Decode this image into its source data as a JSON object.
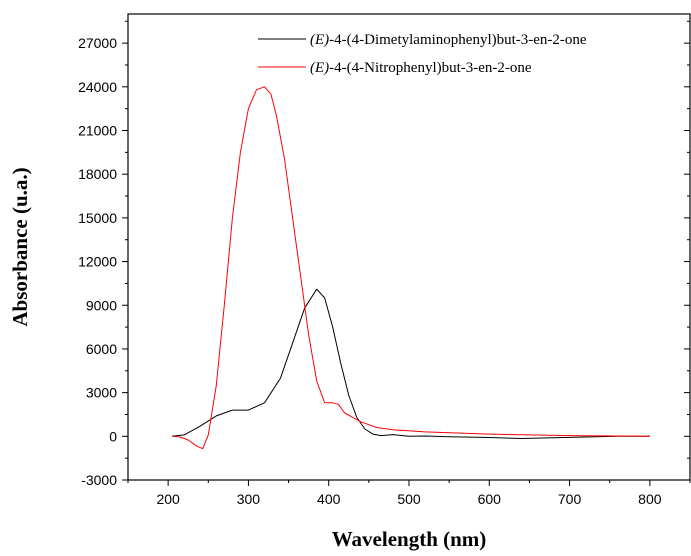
{
  "chart_data": {
    "type": "line",
    "title": "",
    "xlabel": "Wavelength (nm)",
    "ylabel": "Absorbance (u.a.)",
    "xlim": [
      150,
      850
    ],
    "ylim": [
      -3000,
      29000
    ],
    "x_ticks": [
      "200",
      "300",
      "400",
      "500",
      "600",
      "700",
      "800"
    ],
    "y_ticks": [
      "-3000",
      "0",
      "3000",
      "6000",
      "9000",
      "12000",
      "15000",
      "18000",
      "21000",
      "24000",
      "27000"
    ],
    "grid": false,
    "legend_position": "top-right",
    "series": [
      {
        "name_prefix": "(E)",
        "name_suffix": "-4-(4-Dimetylaminophenyl)but-3-en-2-one",
        "color": "#000000",
        "x": [
          205,
          220,
          240,
          260,
          280,
          300,
          320,
          340,
          355,
          370,
          385,
          395,
          405,
          415,
          425,
          435,
          445,
          455,
          465,
          480,
          500,
          520,
          550,
          600,
          640,
          680,
          720,
          760,
          800
        ],
        "y": [
          0,
          100,
          700,
          1400,
          1800,
          1800,
          2300,
          4000,
          6400,
          8800,
          10100,
          9500,
          7500,
          5000,
          2800,
          1300,
          500,
          150,
          50,
          120,
          0,
          20,
          -30,
          -80,
          -150,
          -100,
          -50,
          0,
          0
        ]
      },
      {
        "name_prefix": "(E)",
        "name_suffix": "-4-(4-Nitrophenyl)but-3-en-2-one",
        "color": "#ff0000",
        "x": [
          205,
          215,
          225,
          235,
          243,
          250,
          260,
          270,
          280,
          290,
          300,
          310,
          320,
          328,
          335,
          345,
          355,
          365,
          375,
          385,
          395,
          405,
          412,
          420,
          430,
          440,
          450,
          460,
          480,
          520,
          600,
          700,
          800
        ],
        "y": [
          0,
          -50,
          -250,
          -650,
          -850,
          100,
          3500,
          9000,
          15000,
          19500,
          22500,
          23800,
          24000,
          23500,
          22000,
          19000,
          15000,
          11000,
          7000,
          3800,
          2300,
          2300,
          2200,
          1600,
          1300,
          1000,
          800,
          600,
          450,
          300,
          150,
          50,
          0
        ]
      }
    ]
  }
}
